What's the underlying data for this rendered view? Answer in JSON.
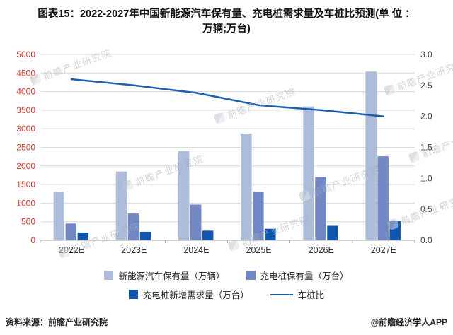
{
  "title": {
    "line1": "图表15：2022-2027年中国新能源汽车保有量、充电桩需求量及车桩比预测(单 位 ：",
    "line2": "万辆;万台)"
  },
  "watermark_text": "前瞻产业研究院",
  "footer": {
    "source": "资料来源：前瞻产业研究院",
    "brand": "@前瞻经济学人APP"
  },
  "chart_data": {
    "type": "bar",
    "title": "2022-2027年中国新能源汽车保有量、充电桩需求量及车桩比预测",
    "categories": [
      "2022E",
      "2023E",
      "2024E",
      "2025E",
      "2026E",
      "2027E"
    ],
    "series": [
      {
        "name": "新能源汽车保有量（万辆）",
        "type": "bar",
        "axis": "left",
        "color": "#aebcdc",
        "values": [
          1310,
          1850,
          2400,
          2870,
          3600,
          4540
        ]
      },
      {
        "name": "充电桩保有量（万台）",
        "type": "bar",
        "axis": "left",
        "color": "#7287c6",
        "values": [
          450,
          720,
          960,
          1300,
          1700,
          2260
        ]
      },
      {
        "name": "充电桩新增需求量（万台）",
        "type": "bar",
        "axis": "left",
        "color": "#0f57ae",
        "values": [
          210,
          230,
          260,
          310,
          390,
          520
        ]
      },
      {
        "name": "车桩比",
        "type": "line",
        "axis": "right",
        "color": "#1c5fb0",
        "values": [
          2.6,
          2.5,
          2.38,
          2.18,
          2.1,
          2.0
        ]
      }
    ],
    "left_axis": {
      "min": 0,
      "max": 5000,
      "step": 500,
      "label_color": "#cf3a28"
    },
    "right_axis": {
      "min": 0,
      "max": 3,
      "step": 0.5,
      "decimals": 1,
      "label_color": "#404040"
    },
    "x_label_color": "#333333",
    "grid": true,
    "grid_color": "#d9d9d9",
    "axis_line_color": "#a6a6a6",
    "legend_position": "bottom"
  }
}
